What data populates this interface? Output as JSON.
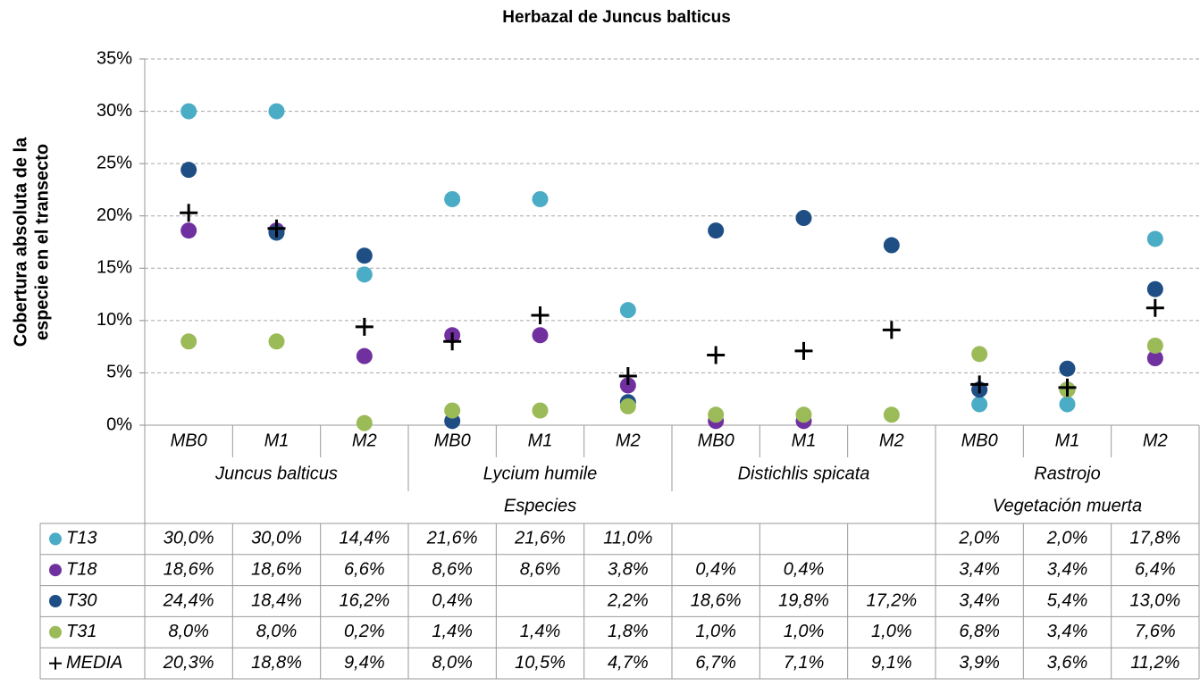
{
  "chart_data": {
    "type": "scatter",
    "title": "Herbazal de Juncus balticus",
    "ylabel": [
      "Cobertura absoluta de la",
      "especie en el transecto"
    ],
    "category_tree": [
      {
        "name": "Especies",
        "groups": [
          {
            "name": "Juncus balticus",
            "categories": [
              "MB0",
              "M1",
              "M2"
            ]
          },
          {
            "name": "Lycium humile",
            "categories": [
              "MB0",
              "M1",
              "M2"
            ]
          },
          {
            "name": "Distichlis spicata",
            "categories": [
              "MB0",
              "M1",
              "M2"
            ]
          }
        ]
      },
      {
        "name": "Vegetación muerta",
        "groups": [
          {
            "name": "Rastrojo",
            "categories": [
              "MB0",
              "M1",
              "M2"
            ]
          }
        ]
      }
    ],
    "ylim": [
      0,
      35
    ],
    "yticks": [
      {
        "value": 0,
        "label": "0%"
      },
      {
        "value": 5,
        "label": "5%"
      },
      {
        "value": 10,
        "label": "10%"
      },
      {
        "value": 15,
        "label": "15%"
      },
      {
        "value": 20,
        "label": "20%"
      },
      {
        "value": 25,
        "label": "25%"
      },
      {
        "value": 30,
        "label": "30%"
      },
      {
        "value": 35,
        "label": "35%"
      }
    ],
    "grid": true,
    "series": [
      {
        "name": "T13",
        "color": "#4bacc6",
        "marker": "circle",
        "values": [
          30.0,
          30.0,
          14.4,
          21.6,
          21.6,
          11.0,
          null,
          null,
          null,
          2.0,
          2.0,
          17.8
        ],
        "value_labels": [
          "30,0%",
          "30,0%",
          "14,4%",
          "21,6%",
          "21,6%",
          "11,0%",
          null,
          null,
          null,
          "2,0%",
          "2,0%",
          "17,8%"
        ]
      },
      {
        "name": "T18",
        "color": "#7030a0",
        "marker": "circle",
        "values": [
          18.6,
          18.6,
          6.6,
          8.6,
          8.6,
          3.8,
          0.4,
          0.4,
          null,
          3.4,
          3.4,
          6.4
        ],
        "value_labels": [
          "18,6%",
          "18,6%",
          "6,6%",
          "8,6%",
          "8,6%",
          "3,8%",
          "0,4%",
          "0,4%",
          null,
          "3,4%",
          "3,4%",
          "6,4%"
        ]
      },
      {
        "name": "T30",
        "color": "#1f4e85",
        "marker": "circle",
        "values": [
          24.4,
          18.4,
          16.2,
          0.4,
          null,
          2.2,
          18.6,
          19.8,
          17.2,
          3.4,
          5.4,
          13.0
        ],
        "value_labels": [
          "24,4%",
          "18,4%",
          "16,2%",
          "0,4%",
          null,
          "2,2%",
          "18,6%",
          "19,8%",
          "17,2%",
          "3,4%",
          "5,4%",
          "13,0%"
        ]
      },
      {
        "name": "T31",
        "color": "#9bbb59",
        "marker": "circle",
        "values": [
          8.0,
          8.0,
          0.2,
          1.4,
          1.4,
          1.8,
          1.0,
          1.0,
          1.0,
          6.8,
          3.4,
          7.6
        ],
        "value_labels": [
          "8,0%",
          "8,0%",
          "0,2%",
          "1,4%",
          "1,4%",
          "1,8%",
          "1,0%",
          "1,0%",
          "1,0%",
          "6,8%",
          "3,4%",
          "7,6%"
        ]
      },
      {
        "name": "MEDIA",
        "color": "#000000",
        "marker": "plus",
        "values": [
          20.3,
          18.8,
          9.4,
          8.0,
          10.5,
          4.7,
          6.7,
          7.1,
          9.1,
          3.9,
          3.6,
          11.2
        ],
        "value_labels": [
          "20,3%",
          "18,8%",
          "9,4%",
          "8,0%",
          "10,5%",
          "4,7%",
          "6,7%",
          "7,1%",
          "9,1%",
          "3,9%",
          "3,6%",
          "11,2%"
        ]
      }
    ]
  }
}
